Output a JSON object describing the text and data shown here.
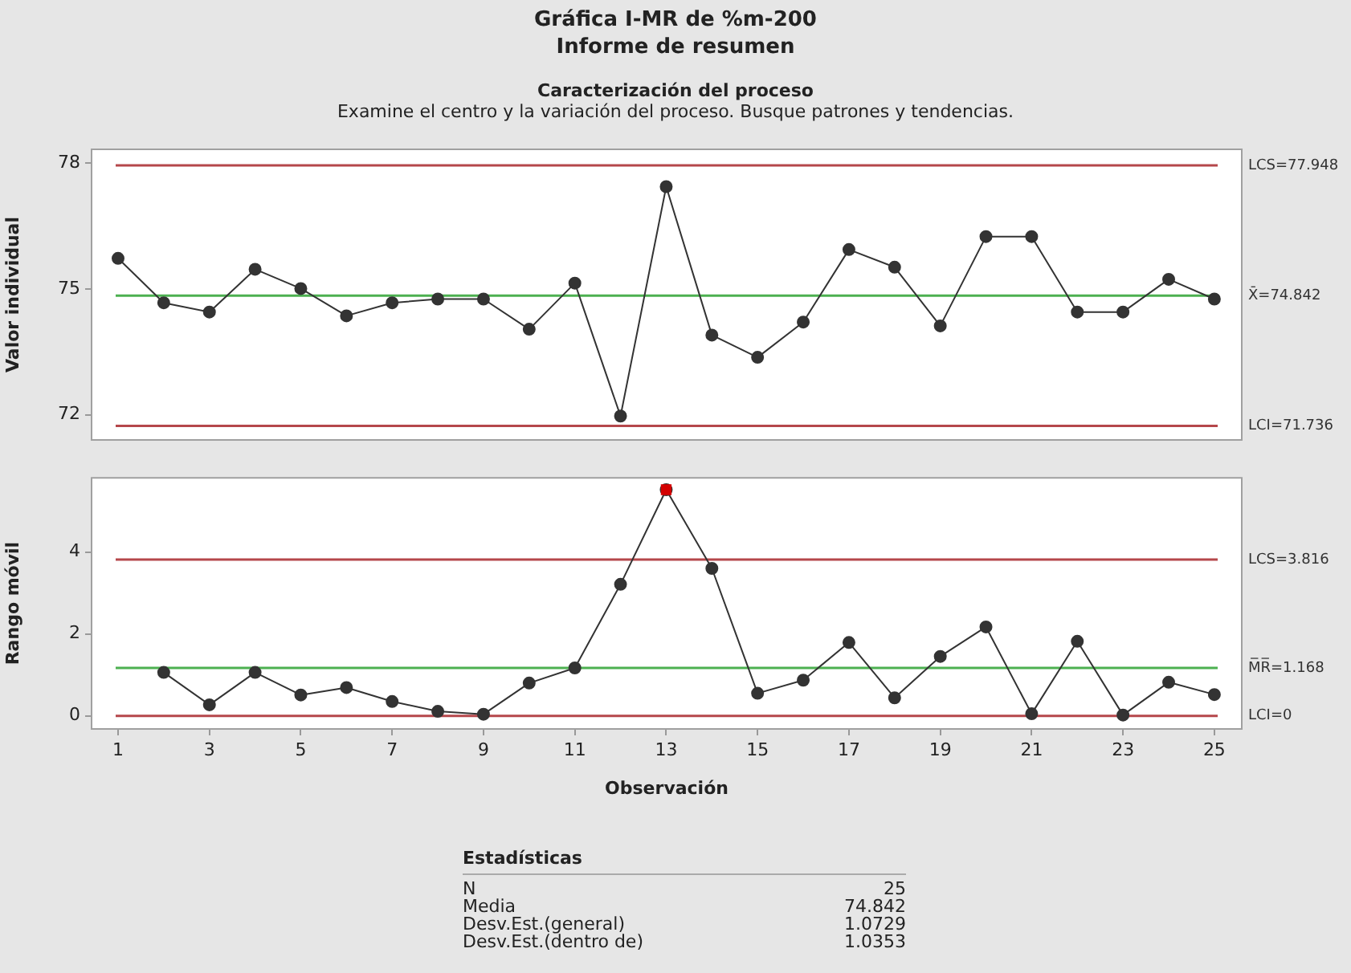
{
  "chart_data": [
    {
      "type": "line",
      "title": "Gráfica I-MR de %m-200",
      "subtitle": "Informe de resumen",
      "annotations": [
        "Caracterización del proceso",
        "Examine el centro y la variación del proceso. Busque patrones y tendencias."
      ],
      "ylabel": "Valor individual",
      "marker": "circle",
      "line_style": "solid",
      "grid": false,
      "legend": false,
      "tick_labels": "y",
      "xlim": [
        0.42,
        25.6
      ],
      "ylim": [
        71.4,
        78.33
      ],
      "yticks": [
        72,
        75,
        78
      ],
      "series": [
        {
          "color": "#333333",
          "x": [
            1,
            2,
            3,
            4,
            5,
            6,
            7,
            8,
            9,
            10,
            11,
            12,
            13,
            14,
            15,
            16,
            17,
            18,
            19,
            20,
            21,
            22,
            23,
            24,
            25
          ],
          "values": [
            75.73,
            74.67,
            74.45,
            75.47,
            75.01,
            74.36,
            74.67,
            74.76,
            74.76,
            74.04,
            75.14,
            71.97,
            77.44,
            73.9,
            73.37,
            74.21,
            75.94,
            75.52,
            74.12,
            76.25,
            76.25,
            74.45,
            74.45,
            75.23,
            74.76
          ]
        }
      ],
      "ref_lines": [
        {
          "axis": "y",
          "value": 77.948,
          "label": "LCS=77.948",
          "color": "#b5474b"
        },
        {
          "axis": "y",
          "value": 74.842,
          "label": "X̄=74.842",
          "color": "#4cb050"
        },
        {
          "axis": "y",
          "value": 71.736,
          "label": "LCI=71.736",
          "color": "#b5474b"
        }
      ]
    },
    {
      "type": "line",
      "xlabel": "Observación",
      "ylabel": "Rango móvil",
      "marker": "circle",
      "line_style": "solid",
      "grid": false,
      "legend": false,
      "xlim": [
        0.42,
        25.6
      ],
      "xticks": [
        1,
        3,
        5,
        7,
        9,
        11,
        13,
        15,
        17,
        19,
        21,
        23,
        25
      ],
      "ylim": [
        -0.32,
        5.81
      ],
      "yticks": [
        0,
        2,
        4
      ],
      "series": [
        {
          "color": "#333333",
          "x": [
            2,
            3,
            4,
            5,
            6,
            7,
            8,
            9,
            10,
            11,
            12,
            13,
            14,
            15,
            16,
            17,
            18,
            19,
            20,
            21,
            22,
            23,
            24,
            25
          ],
          "values": [
            1.06,
            0.27,
            1.06,
            0.51,
            0.69,
            0.35,
            0.11,
            0.04,
            0.8,
            1.17,
            3.21,
            5.52,
            3.6,
            0.55,
            0.87,
            1.79,
            0.44,
            1.45,
            2.17,
            0.05,
            1.82,
            0.02,
            0.82,
            0.52
          ]
        },
        {
          "type": "scatter",
          "marker": "square",
          "color": "#d40000",
          "x": [
            13
          ],
          "values": [
            5.52
          ]
        }
      ],
      "ref_lines": [
        {
          "axis": "y",
          "value": 3.816,
          "label": "LCS=3.816",
          "color": "#b5474b"
        },
        {
          "axis": "y",
          "value": 1.168,
          "label": "M̅R̅=1.168",
          "color": "#4cb050"
        },
        {
          "axis": "y",
          "value": 0,
          "label": "LCI=0",
          "color": "#b5474b"
        }
      ]
    },
    {
      "type": "other",
      "title": "Estadísticas",
      "categories": [
        "N",
        "Media",
        "Desv.Est.(general)",
        "Desv.Est.(dentro de)"
      ],
      "values": [
        25,
        74.842,
        1.0729,
        1.0353
      ],
      "data_labels": true
    }
  ]
}
